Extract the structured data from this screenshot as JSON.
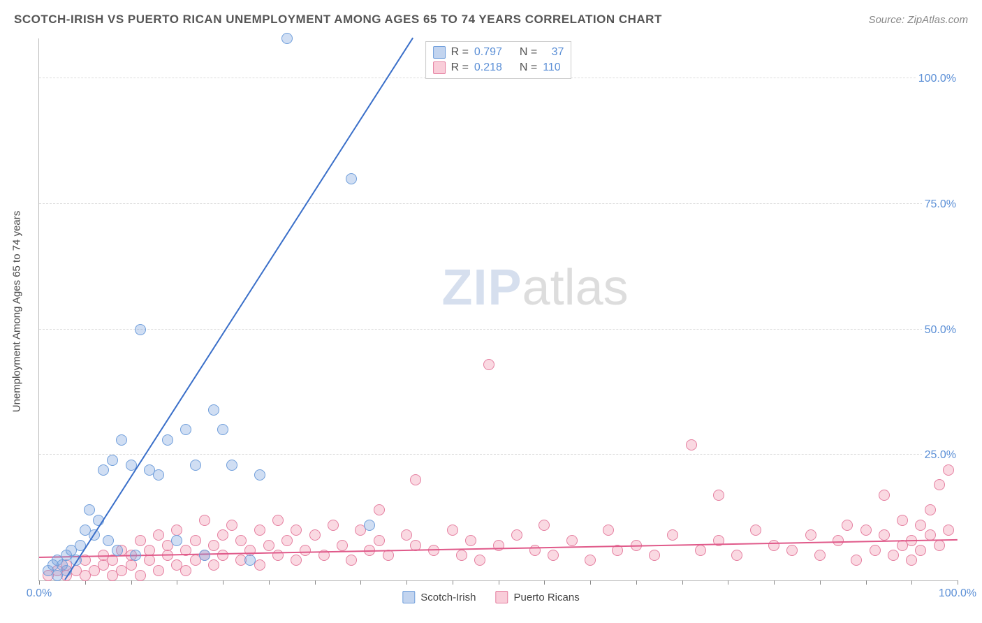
{
  "title": "SCOTCH-IRISH VS PUERTO RICAN UNEMPLOYMENT AMONG AGES 65 TO 74 YEARS CORRELATION CHART",
  "source": "Source: ZipAtlas.com",
  "y_axis_title": "Unemployment Among Ages 65 to 74 years",
  "watermark_zip": "ZIP",
  "watermark_atlas": "atlas",
  "chart": {
    "type": "scatter",
    "xlim": [
      0,
      100
    ],
    "ylim": [
      0,
      108
    ],
    "x_ticks_major": [
      0,
      100
    ],
    "x_ticks_minor_step": 5,
    "x_tick_labels": {
      "0": "0.0%",
      "100": "100.0%"
    },
    "y_gridlines": [
      25,
      50,
      75,
      100
    ],
    "y_tick_labels": {
      "25": "25.0%",
      "50": "50.0%",
      "75": "75.0%",
      "100": "100.0%"
    },
    "background_color": "#ffffff",
    "grid_color": "#dddddd",
    "axis_color": "#bbbbbb",
    "tick_label_color": "#5b8fd6",
    "label_fontsize": 16
  },
  "series": {
    "scotch_irish": {
      "label": "Scotch-Irish",
      "fill_color": "rgba(120,160,220,0.35)",
      "stroke_color": "#6f9edb",
      "marker_radius": 8,
      "trend": {
        "slope": 2.85,
        "intercept": -8,
        "color": "#3a6fc9",
        "width": 2
      },
      "stats": {
        "R": "0.797",
        "N": "37"
      },
      "swatch_fill": "rgba(120,160,220,0.45)",
      "swatch_stroke": "#6f9edb",
      "points": [
        [
          1,
          2
        ],
        [
          1.5,
          3
        ],
        [
          2,
          1
        ],
        [
          2,
          4
        ],
        [
          2.5,
          3
        ],
        [
          3,
          5
        ],
        [
          3,
          2
        ],
        [
          3.5,
          6
        ],
        [
          4,
          4
        ],
        [
          4.5,
          7
        ],
        [
          5,
          10
        ],
        [
          5.5,
          14
        ],
        [
          6,
          9
        ],
        [
          6.5,
          12
        ],
        [
          7,
          22
        ],
        [
          7.5,
          8
        ],
        [
          8,
          24
        ],
        [
          8.5,
          6
        ],
        [
          9,
          28
        ],
        [
          10,
          23
        ],
        [
          10.5,
          5
        ],
        [
          11,
          50
        ],
        [
          12,
          22
        ],
        [
          13,
          21
        ],
        [
          14,
          28
        ],
        [
          15,
          8
        ],
        [
          16,
          30
        ],
        [
          17,
          23
        ],
        [
          18,
          5
        ],
        [
          19,
          34
        ],
        [
          20,
          30
        ],
        [
          21,
          23
        ],
        [
          23,
          4
        ],
        [
          24,
          21
        ],
        [
          27,
          108
        ],
        [
          34,
          80
        ],
        [
          36,
          11
        ]
      ]
    },
    "puerto_ricans": {
      "label": "Puerto Ricans",
      "fill_color": "rgba(240,130,160,0.30)",
      "stroke_color": "#e57fa0",
      "marker_radius": 8,
      "trend": {
        "slope": 0.035,
        "intercept": 4.5,
        "color": "#e05a8a",
        "width": 2
      },
      "stats": {
        "R": "0.218",
        "N": "110"
      },
      "swatch_fill": "rgba(240,130,160,0.40)",
      "swatch_stroke": "#e57fa0",
      "points": [
        [
          1,
          1
        ],
        [
          2,
          2
        ],
        [
          3,
          1
        ],
        [
          3,
          3
        ],
        [
          4,
          2
        ],
        [
          5,
          1
        ],
        [
          5,
          4
        ],
        [
          6,
          2
        ],
        [
          7,
          3
        ],
        [
          7,
          5
        ],
        [
          8,
          1
        ],
        [
          8,
          4
        ],
        [
          9,
          2
        ],
        [
          9,
          6
        ],
        [
          10,
          3
        ],
        [
          10,
          5
        ],
        [
          11,
          1
        ],
        [
          11,
          8
        ],
        [
          12,
          4
        ],
        [
          12,
          6
        ],
        [
          13,
          2
        ],
        [
          13,
          9
        ],
        [
          14,
          5
        ],
        [
          14,
          7
        ],
        [
          15,
          3
        ],
        [
          15,
          10
        ],
        [
          16,
          2
        ],
        [
          16,
          6
        ],
        [
          17,
          8
        ],
        [
          17,
          4
        ],
        [
          18,
          12
        ],
        [
          18,
          5
        ],
        [
          19,
          7
        ],
        [
          19,
          3
        ],
        [
          20,
          9
        ],
        [
          20,
          5
        ],
        [
          21,
          11
        ],
        [
          22,
          4
        ],
        [
          22,
          8
        ],
        [
          23,
          6
        ],
        [
          24,
          10
        ],
        [
          24,
          3
        ],
        [
          25,
          7
        ],
        [
          26,
          5
        ],
        [
          26,
          12
        ],
        [
          27,
          8
        ],
        [
          28,
          4
        ],
        [
          28,
          10
        ],
        [
          29,
          6
        ],
        [
          30,
          9
        ],
        [
          31,
          5
        ],
        [
          32,
          11
        ],
        [
          33,
          7
        ],
        [
          34,
          4
        ],
        [
          35,
          10
        ],
        [
          36,
          6
        ],
        [
          37,
          8
        ],
        [
          37,
          14
        ],
        [
          38,
          5
        ],
        [
          40,
          9
        ],
        [
          41,
          7
        ],
        [
          41,
          20
        ],
        [
          43,
          6
        ],
        [
          45,
          10
        ],
        [
          46,
          5
        ],
        [
          47,
          8
        ],
        [
          48,
          4
        ],
        [
          49,
          43
        ],
        [
          50,
          7
        ],
        [
          52,
          9
        ],
        [
          54,
          6
        ],
        [
          55,
          11
        ],
        [
          56,
          5
        ],
        [
          58,
          8
        ],
        [
          60,
          4
        ],
        [
          62,
          10
        ],
        [
          63,
          6
        ],
        [
          65,
          7
        ],
        [
          67,
          5
        ],
        [
          69,
          9
        ],
        [
          71,
          27
        ],
        [
          72,
          6
        ],
        [
          74,
          8
        ],
        [
          74,
          17
        ],
        [
          76,
          5
        ],
        [
          78,
          10
        ],
        [
          80,
          7
        ],
        [
          82,
          6
        ],
        [
          84,
          9
        ],
        [
          85,
          5
        ],
        [
          87,
          8
        ],
        [
          88,
          11
        ],
        [
          89,
          4
        ],
        [
          90,
          10
        ],
        [
          91,
          6
        ],
        [
          92,
          9
        ],
        [
          92,
          17
        ],
        [
          93,
          5
        ],
        [
          94,
          12
        ],
        [
          94,
          7
        ],
        [
          95,
          8
        ],
        [
          95,
          4
        ],
        [
          96,
          11
        ],
        [
          96,
          6
        ],
        [
          97,
          9
        ],
        [
          97,
          14
        ],
        [
          98,
          7
        ],
        [
          98,
          19
        ],
        [
          99,
          10
        ],
        [
          99,
          22
        ]
      ]
    }
  },
  "legend_stat_labels": {
    "r_label": "R =",
    "n_label": "N ="
  }
}
